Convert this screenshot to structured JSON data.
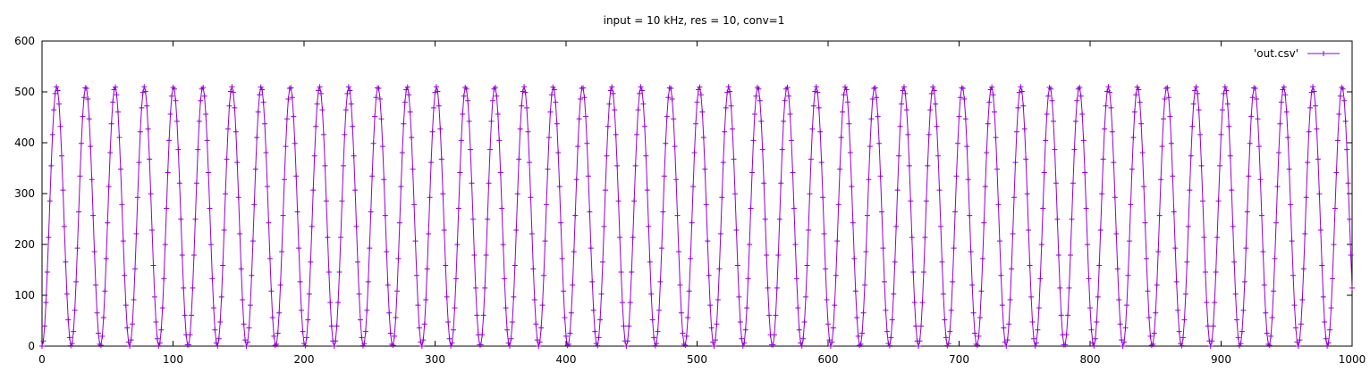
{
  "chart_data": {
    "type": "line",
    "title": "input = 10 kHz, res = 10, conv=1",
    "xlim": [
      0,
      1000
    ],
    "ylim": [
      0,
      600
    ],
    "x_ticks": [
      "0",
      "100",
      "200",
      "300",
      "400",
      "500",
      "600",
      "700",
      "800",
      "900",
      "1000"
    ],
    "y_ticks": [
      "0",
      "100",
      "200",
      "300",
      "400",
      "500",
      "600"
    ],
    "legend_position": "top-right",
    "grid": false,
    "series": [
      {
        "name": "'out.csv'",
        "color": "#9400d3",
        "marker": "plus",
        "samples_per_cycle": 22.3,
        "waveform": "sine",
        "min": 0,
        "max": 510,
        "x_start": 0,
        "x_end": 1000
      }
    ]
  }
}
